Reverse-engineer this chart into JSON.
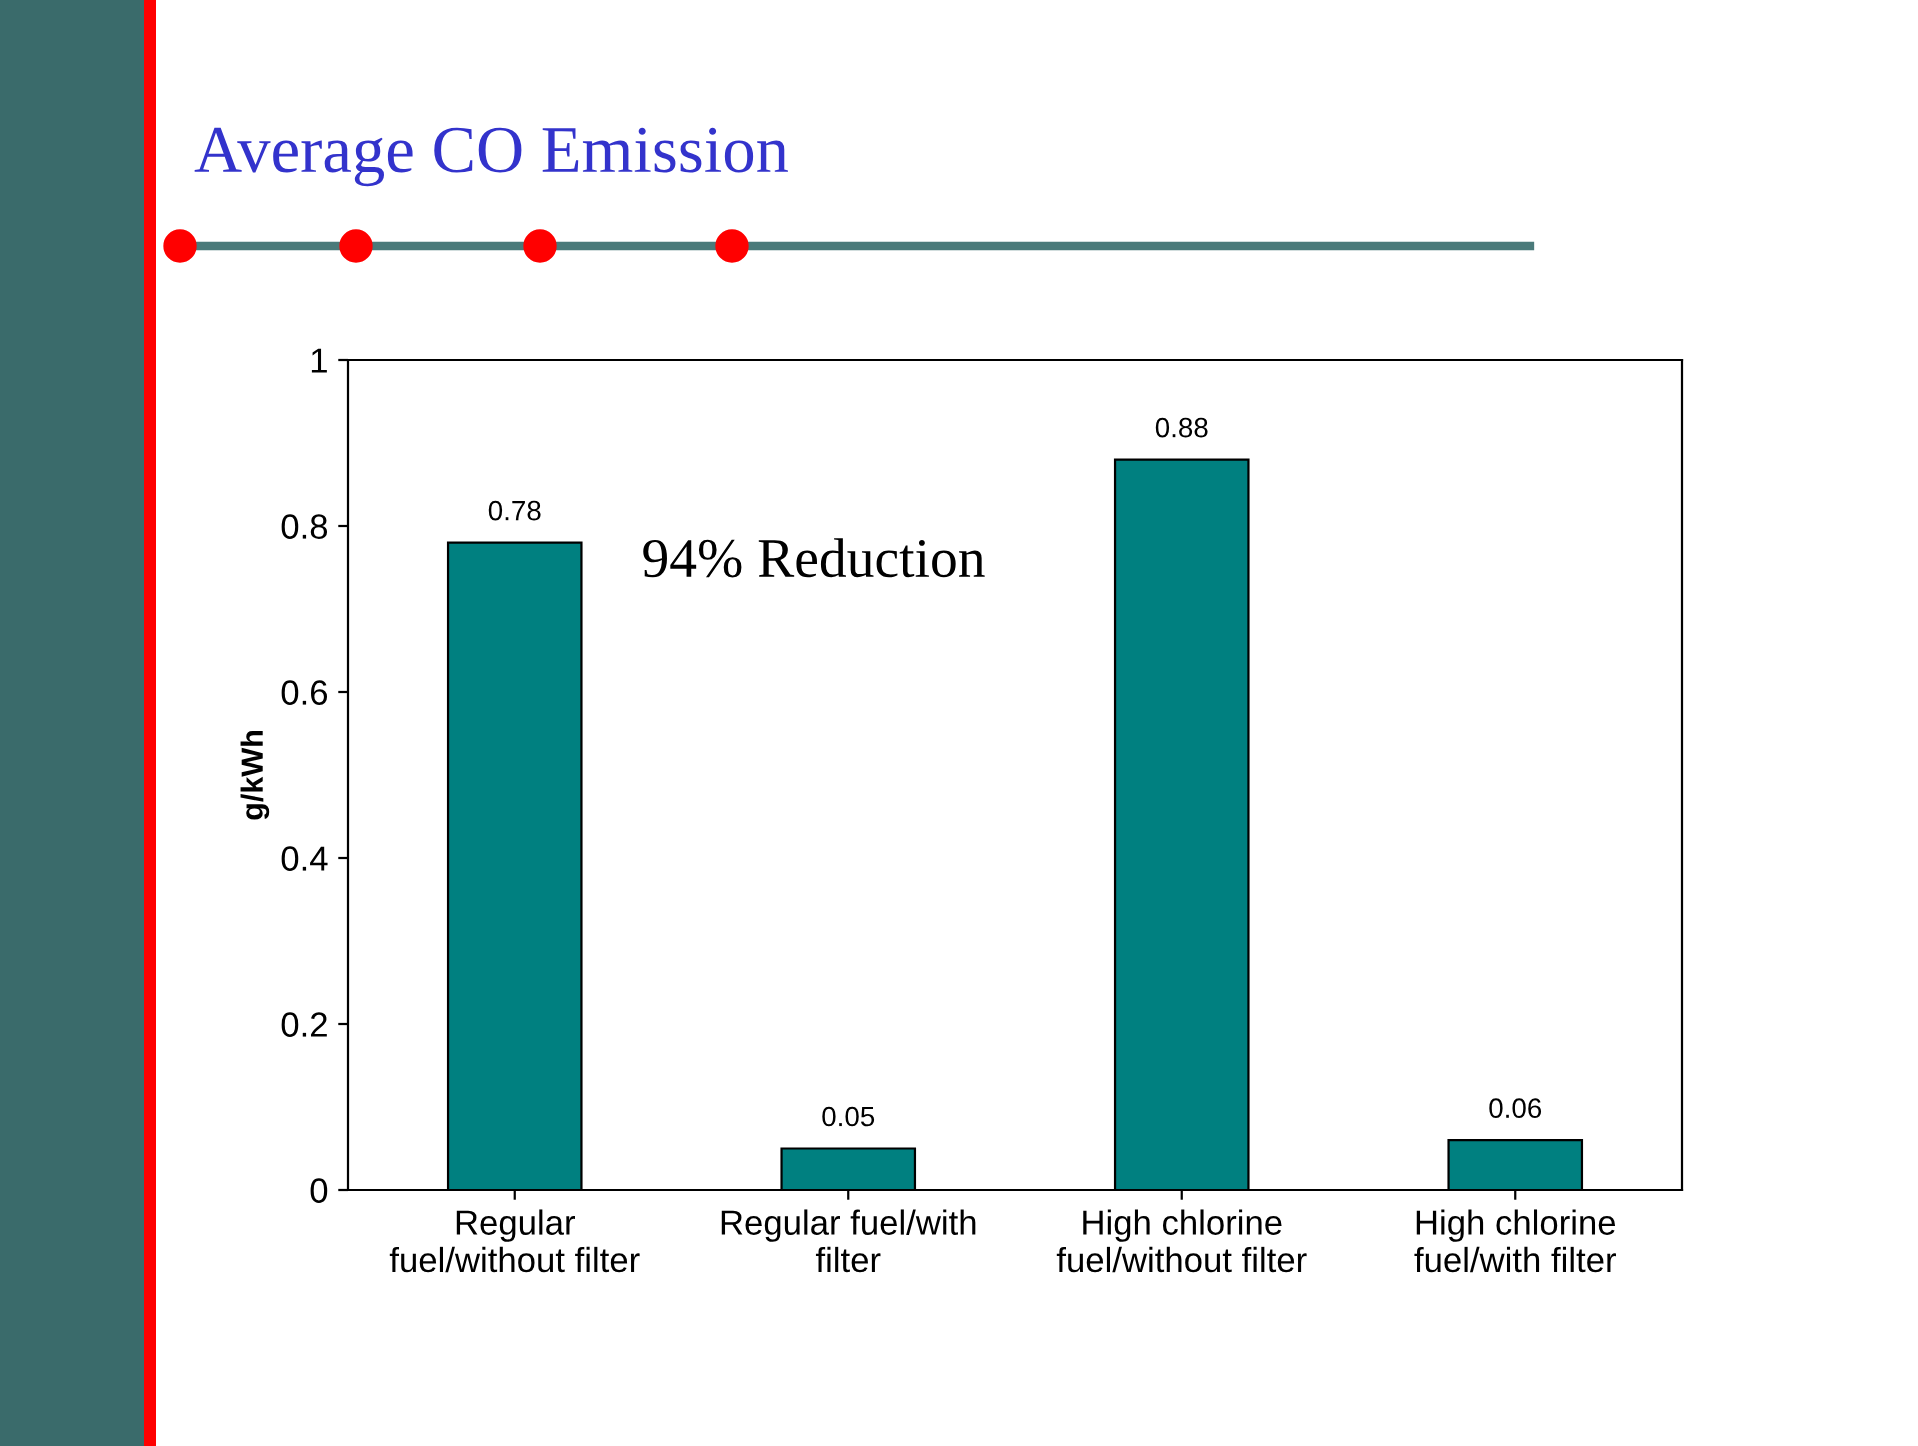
{
  "chart_data": {
    "type": "bar",
    "title": "Average CO Emission",
    "ylabel": "g/kWh",
    "categories": [
      "Regular\nfuel/without filter",
      "Regular fuel/with\nfilter",
      "High chlorine\nfuel/without filter",
      "High chlorine\nfuel/with filter"
    ],
    "values": [
      0.78,
      0.05,
      0.88,
      0.06
    ],
    "color": "#008080",
    "data_labels": true,
    "ylim": [
      0,
      1
    ],
    "yticks": [
      0,
      0.2,
      0.4,
      0.6,
      0.8,
      1
    ],
    "grid": false,
    "legend": false,
    "annotations": [
      "94% Reduction"
    ]
  }
}
